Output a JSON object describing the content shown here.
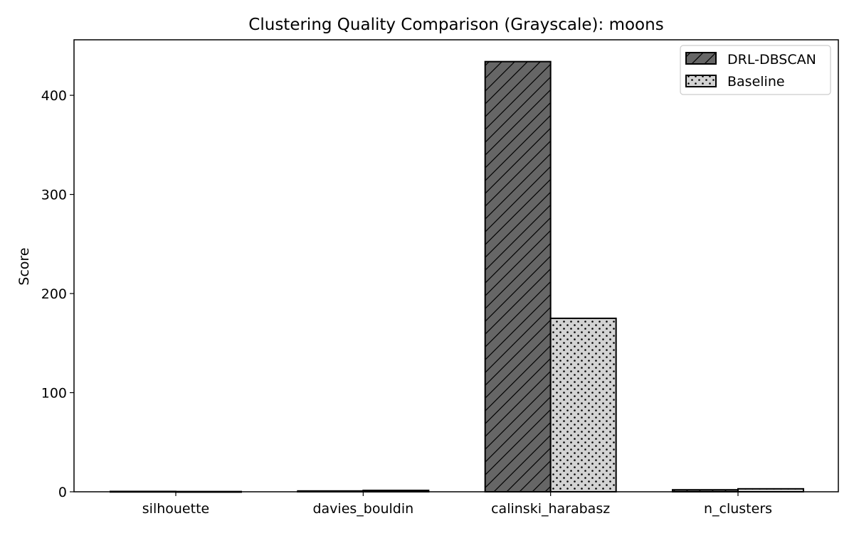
{
  "chart_data": {
    "type": "bar",
    "title": "Clustering Quality Comparison (Grayscale): moons",
    "xlabel": "",
    "ylabel": "Score",
    "categories": [
      "silhouette",
      "davies_bouldin",
      "calinski_harabasz",
      "n_clusters"
    ],
    "series": [
      {
        "name": "DRL-DBSCAN",
        "values": [
          0.38,
          0.85,
          434.0,
          2
        ],
        "color": "#666666",
        "pattern": "diagonal-hatch"
      },
      {
        "name": "Baseline",
        "values": [
          0.25,
          1.4,
          175.0,
          3
        ],
        "color": "#d3d3d3",
        "pattern": "dots"
      }
    ],
    "ylim": [
      0,
      456
    ],
    "yticks": [
      0,
      100,
      200,
      300,
      400
    ],
    "grid": false,
    "legend_position": "top-right"
  }
}
